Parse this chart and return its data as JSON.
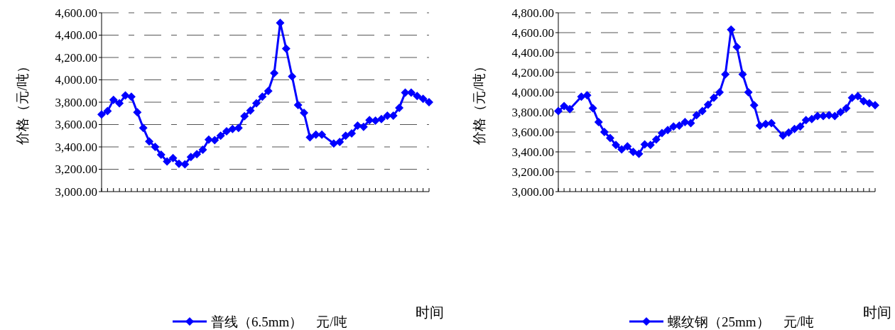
{
  "chart_data": [
    {
      "type": "line",
      "ylabel": "价格（元/吨）",
      "xlabel": "时间",
      "categories": [
        null,
        null,
        null,
        null,
        null,
        null,
        null,
        null,
        null,
        null,
        null,
        null,
        null,
        null,
        null,
        null,
        null,
        null,
        null,
        null,
        null,
        null,
        null,
        null,
        null,
        null,
        null,
        null,
        null,
        null,
        null,
        null,
        null,
        null,
        null,
        null,
        null,
        null,
        null,
        null,
        null,
        null,
        null,
        null,
        null,
        null,
        null,
        null,
        null,
        null,
        null,
        null,
        null,
        null,
        null,
        null
      ],
      "series": [
        {
          "name": "普线（6.5mm）　元/吨",
          "color": "#0000ff",
          "values": [
            3690,
            3720,
            3820,
            3790,
            3860,
            3850,
            3710,
            3570,
            3450,
            3400,
            3330,
            3270,
            3300,
            3250,
            3245,
            3310,
            3335,
            3375,
            3465,
            3460,
            3500,
            3540,
            3560,
            3570,
            3675,
            3725,
            3790,
            3850,
            3900,
            4060,
            4510,
            4280,
            4030,
            3775,
            3705,
            3485,
            3510,
            3510,
            null,
            3430,
            3445,
            3500,
            3520,
            3590,
            3580,
            3640,
            3635,
            3650,
            3680,
            3680,
            3750,
            3885,
            3885,
            3855,
            3830,
            3800
          ]
        }
      ],
      "ylim": [
        3000,
        4600
      ],
      "yticks": [
        {
          "value": 3000,
          "label": "3,000.00"
        },
        {
          "value": 3200,
          "label": "3,200.00"
        },
        {
          "value": 3400,
          "label": "3,400.00"
        },
        {
          "value": 3600,
          "label": "3,600.00"
        },
        {
          "value": 3800,
          "label": "3,800.00"
        },
        {
          "value": 4000,
          "label": "4,000.00"
        },
        {
          "value": 4200,
          "label": "4,200.00"
        },
        {
          "value": 4400,
          "label": "4,400.00"
        },
        {
          "value": 4600,
          "label": "4,600.00"
        }
      ],
      "grid": "y",
      "legend": "bottom",
      "marker": "diamond",
      "line_style": "solid"
    },
    {
      "type": "line",
      "ylabel": "价格（元/吨）",
      "xlabel": "时间",
      "categories": [
        null,
        null,
        null,
        null,
        null,
        null,
        null,
        null,
        null,
        null,
        null,
        null,
        null,
        null,
        null,
        null,
        null,
        null,
        null,
        null,
        null,
        null,
        null,
        null,
        null,
        null,
        null,
        null,
        null,
        null,
        null,
        null,
        null,
        null,
        null,
        null,
        null,
        null,
        null,
        null,
        null,
        null,
        null,
        null,
        null,
        null,
        null,
        null,
        null,
        null,
        null,
        null,
        null,
        null,
        null,
        null
      ],
      "series": [
        {
          "name": "螺纹钢（25mm）　元/吨",
          "color": "#0000ff",
          "values": [
            3810,
            3860,
            3830,
            null,
            3955,
            3970,
            3840,
            3700,
            3600,
            3540,
            3470,
            3425,
            3455,
            3400,
            3380,
            3475,
            3470,
            3525,
            3590,
            3620,
            3655,
            3665,
            3700,
            3690,
            3770,
            3810,
            3875,
            3945,
            4000,
            4180,
            4630,
            4455,
            4180,
            4000,
            3870,
            3665,
            3680,
            3690,
            null,
            3565,
            3595,
            3630,
            3655,
            3720,
            3730,
            3760,
            3760,
            3770,
            3760,
            3800,
            3840,
            3945,
            3960,
            3910,
            3890,
            3870
          ]
        }
      ],
      "ylim": [
        3000,
        4800
      ],
      "yticks": [
        {
          "value": 3000,
          "label": "3,000.00"
        },
        {
          "value": 3200,
          "label": "3,200.00"
        },
        {
          "value": 3400,
          "label": "3,400.00"
        },
        {
          "value": 3600,
          "label": "3,600.00"
        },
        {
          "value": 3800,
          "label": "3,800.00"
        },
        {
          "value": 4000,
          "label": "4,000.00"
        },
        {
          "value": 4200,
          "label": "4,200.00"
        },
        {
          "value": 4400,
          "label": "4,400.00"
        },
        {
          "value": 4600,
          "label": "4,600.00"
        },
        {
          "value": 4800,
          "label": "4,800.00"
        }
      ],
      "grid": "y",
      "legend": "bottom",
      "marker": "diamond",
      "line_style": "solid"
    }
  ]
}
